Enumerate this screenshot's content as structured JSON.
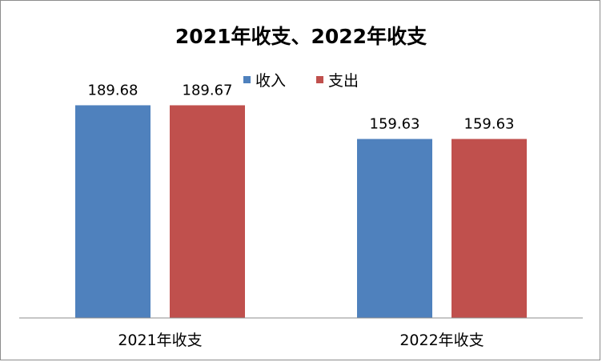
{
  "chart_data": {
    "type": "bar",
    "title": "2021年收支、2022年收支",
    "categories": [
      "2021年收支",
      "2022年收支"
    ],
    "series": [
      {
        "name": "收入",
        "values": [
          189.68,
          159.63
        ],
        "color": "#4f81bd"
      },
      {
        "name": "支出",
        "values": [
          189.67,
          159.63
        ],
        "color": "#c0504d"
      }
    ],
    "data_labels": [
      [
        "189.68",
        "159.63"
      ],
      [
        "189.67",
        "159.63"
      ]
    ],
    "ylim": [
      0,
      200
    ],
    "legend_position": "top",
    "grid": false
  }
}
